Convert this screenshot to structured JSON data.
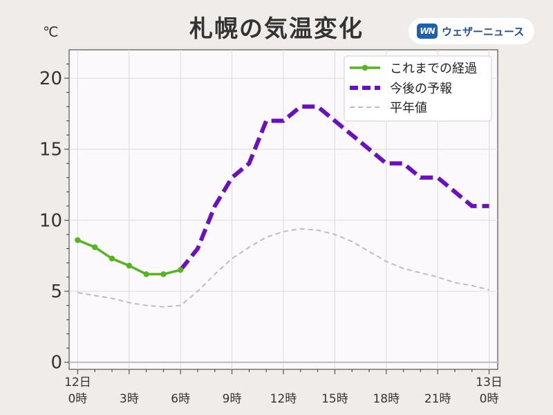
{
  "header": {
    "title": "札幌の気温変化",
    "unit": "℃",
    "brand_mark": "WN",
    "brand_name": "ウェザーニュース"
  },
  "colors": {
    "observed": "#55b520",
    "forecast": "#6a0fc4",
    "normal": "#bdbdbd",
    "brand": "#1d5fb3"
  },
  "chart_data": {
    "type": "line",
    "title": "札幌の気温変化",
    "xlabel": "",
    "ylabel": "℃",
    "ylim": [
      -0.5,
      22
    ],
    "xlim": [
      -0.5,
      24.5
    ],
    "y_ticks": [
      0,
      5,
      10,
      15,
      20
    ],
    "x_ticks": [
      {
        "x": 0,
        "line1": "12日",
        "line2": "0時"
      },
      {
        "x": 3,
        "line1": "",
        "line2": "3時"
      },
      {
        "x": 6,
        "line1": "",
        "line2": "6時"
      },
      {
        "x": 9,
        "line1": "",
        "line2": "9時"
      },
      {
        "x": 12,
        "line1": "",
        "line2": "12時"
      },
      {
        "x": 15,
        "line1": "",
        "line2": "15時"
      },
      {
        "x": 18,
        "line1": "",
        "line2": "18時"
      },
      {
        "x": 21,
        "line1": "",
        "line2": "21時"
      },
      {
        "x": 24,
        "line1": "13日",
        "line2": "0時"
      }
    ],
    "grid": true,
    "legend_position": "top-right",
    "series": [
      {
        "name": "これまでの経過",
        "style": "solid-markers",
        "x": [
          0,
          1,
          2,
          3,
          4,
          5,
          6
        ],
        "y": [
          8.6,
          8.1,
          7.3,
          6.8,
          6.2,
          6.2,
          6.5
        ]
      },
      {
        "name": "今後の予報",
        "style": "thick-dashed",
        "x": [
          6,
          7,
          8,
          9,
          10,
          11,
          12,
          13,
          14,
          15,
          16,
          17,
          18,
          19,
          20,
          21,
          22,
          23,
          24
        ],
        "y": [
          6.5,
          8.0,
          11.0,
          13.0,
          14.0,
          17.0,
          17.0,
          18.0,
          18.0,
          17.0,
          16.0,
          15.0,
          14.0,
          14.0,
          13.0,
          13.0,
          12.0,
          11.0,
          11.0
        ]
      },
      {
        "name": "平年値",
        "style": "thin-dashed",
        "x": [
          0,
          1,
          2,
          3,
          4,
          5,
          6,
          7,
          8,
          9,
          10,
          11,
          12,
          13,
          14,
          15,
          16,
          17,
          18,
          19,
          20,
          21,
          22,
          23,
          24
        ],
        "y": [
          4.9,
          4.7,
          4.5,
          4.2,
          4.0,
          3.9,
          4.0,
          5.0,
          6.2,
          7.3,
          8.1,
          8.8,
          9.2,
          9.4,
          9.3,
          9.0,
          8.5,
          7.8,
          7.1,
          6.6,
          6.3,
          6.0,
          5.6,
          5.4,
          5.1
        ]
      }
    ]
  }
}
